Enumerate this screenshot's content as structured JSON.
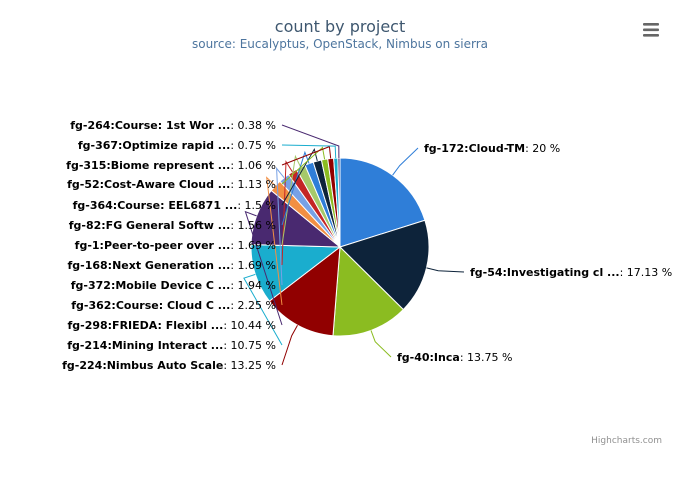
{
  "chart_data": {
    "type": "pie",
    "title": "count by project",
    "subtitle": "source: Eucalyptus, OpenStack, Nimbus on sierra",
    "credits": "Highcharts.com",
    "menu_icon": "hamburger-menu-icon",
    "slices": [
      {
        "name": "fg-172:Cloud-TM",
        "value": 20,
        "label": " %",
        "color": "#2f7ed8"
      },
      {
        "name": "fg-54:Investigating cl ...",
        "value": 17.13,
        "label": " %",
        "color": "#0d233a"
      },
      {
        "name": "fg-40:Inca",
        "value": 13.75,
        "label": " %",
        "color": "#8bbc21"
      },
      {
        "name": "fg-224:Nimbus Auto Scale",
        "value": 13.25,
        "label": " %",
        "color": "#910000"
      },
      {
        "name": "fg-214:Mining Interact ...",
        "value": 10.75,
        "label": " %",
        "color": "#1aadce"
      },
      {
        "name": "fg-298:FRIEDA: Flexibl ...",
        "value": 10.44,
        "label": " %",
        "color": "#492970"
      },
      {
        "name": "fg-362:Course: Cloud C ...",
        "value": 2.25,
        "label": " %",
        "color": "#f28f43"
      },
      {
        "name": "fg-372:Mobile Device C ...",
        "value": 1.94,
        "label": " %",
        "color": "#77a1e5"
      },
      {
        "name": "fg-168:Next Generation ...",
        "value": 1.69,
        "label": " %",
        "color": "#c42525"
      },
      {
        "name": "fg-1:Peer-to-peer over ...",
        "value": 1.69,
        "label": " %",
        "color": "#a6c96a"
      },
      {
        "name": "fg-82:FG General Softw ...",
        "value": 1.56,
        "label": " %",
        "color": "#2f7ed8"
      },
      {
        "name": "fg-364:Course: EEL6871 ...",
        "value": 1.5,
        "label": " %",
        "color": "#0d233a"
      },
      {
        "name": "fg-52:Cost-Aware Cloud ...",
        "value": 1.13,
        "label": " %",
        "color": "#8bbc21"
      },
      {
        "name": "fg-315:Biome represent ...",
        "value": 1.06,
        "label": " %",
        "color": "#910000"
      },
      {
        "name": "fg-367:Optimize rapid ...",
        "value": 0.75,
        "label": " %",
        "color": "#1aadce"
      },
      {
        "name": "fg-264:Course: 1st Wor ...",
        "value": 0.38,
        "label": " %",
        "color": "#492970"
      }
    ]
  }
}
